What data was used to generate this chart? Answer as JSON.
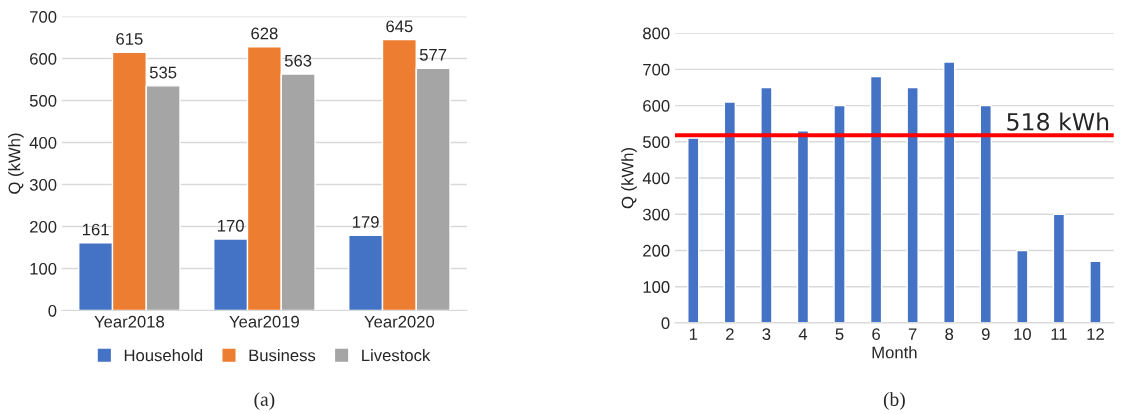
{
  "chart_data": [
    {
      "type": "bar",
      "categories": [
        "Year2018",
        "Year2019",
        "Year2020"
      ],
      "ylabel": "Q (kWh)",
      "ylim": [
        0,
        700
      ],
      "yticks": [
        0,
        100,
        200,
        300,
        400,
        500,
        600,
        700
      ],
      "grid": "y",
      "legend": "bottom",
      "data_labels": true,
      "annotations": [
        "(a)"
      ],
      "series": [
        {
          "name": "Household",
          "color": "#4472c4",
          "values": [
            161,
            170,
            179
          ]
        },
        {
          "name": "Business",
          "color": "#ed7d31",
          "values": [
            615,
            628,
            645
          ]
        },
        {
          "name": "Livestock",
          "color": "#a5a5a5",
          "values": [
            535,
            563,
            577
          ]
        }
      ]
    },
    {
      "type": "bar",
      "categories": [
        "1",
        "2",
        "3",
        "4",
        "5",
        "6",
        "7",
        "8",
        "9",
        "10",
        "11",
        "12"
      ],
      "xlabel": "Month",
      "ylabel": "Q (kWh)",
      "ylim": [
        0,
        800
      ],
      "yticks": [
        0,
        100,
        200,
        300,
        400,
        500,
        600,
        700,
        800
      ],
      "grid": "y",
      "annotations": [
        "(b)"
      ],
      "series": [
        {
          "color": "#4472c4",
          "values": [
            510,
            610,
            650,
            530,
            600,
            680,
            650,
            720,
            600,
            200,
            300,
            170
          ]
        }
      ],
      "ref_lines": [
        {
          "axis": "y",
          "value": 518,
          "label": "518 kWh",
          "color": "#ff0000"
        }
      ]
    }
  ]
}
